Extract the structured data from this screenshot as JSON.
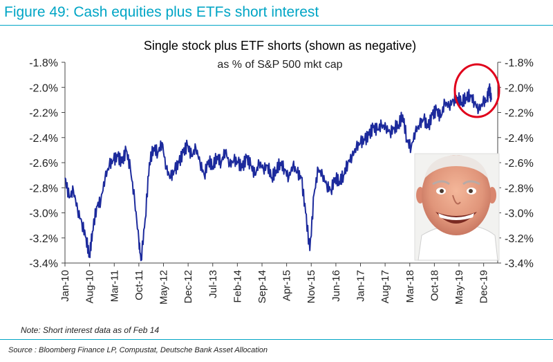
{
  "figure_title": "Figure 49: Cash equities plus ETFs short interest",
  "note": "Note: Short interest data as of Feb 14",
  "source": "Source : Bloomberg Finance LP, Compustat, Deutsche Bank Asset Allocation",
  "colors": {
    "accent": "#00a5c5",
    "line": "#1c2a9c",
    "circle": "#e0001b"
  },
  "chart_data": {
    "type": "line",
    "title": "Single stock plus ETF shorts (shown as negative)",
    "subtitle": "as % of S&P 500 mkt cap",
    "xlabel": "",
    "ylabel": "",
    "ylim": [
      -3.4,
      -1.8
    ],
    "yticks": [
      "-1.8%",
      "-2.0%",
      "-2.2%",
      "-2.4%",
      "-2.6%",
      "-2.8%",
      "-3.0%",
      "-3.2%",
      "-3.4%"
    ],
    "ytick_values": [
      -1.8,
      -2.0,
      -2.2,
      -2.4,
      -2.6,
      -2.8,
      -3.0,
      -3.2,
      -3.4
    ],
    "xticks": [
      "Jan-10",
      "Aug-10",
      "Mar-11",
      "Oct-11",
      "May-12",
      "Dec-12",
      "Jul-13",
      "Feb-14",
      "Sep-14",
      "Apr-15",
      "Nov-15",
      "Jun-16",
      "Jan-17",
      "Aug-17",
      "Mar-18",
      "Oct-18",
      "May-19",
      "Dec-19"
    ],
    "xtick_values": [
      2010.0,
      2010.583,
      2011.167,
      2011.75,
      2012.333,
      2012.917,
      2013.5,
      2014.083,
      2014.667,
      2015.25,
      2015.833,
      2016.417,
      2017.0,
      2017.583,
      2018.167,
      2018.75,
      2019.333,
      2019.917
    ],
    "xlim": [
      2010.0,
      2020.25
    ],
    "right_axis": "mirror",
    "grid": false,
    "annotations": [
      "red circle around latest values",
      "meme photo overlay"
    ],
    "series": [
      {
        "x": [
          2010.0,
          2010.1,
          2010.2,
          2010.3,
          2010.4,
          2010.5,
          2010.58,
          2010.65,
          2010.75,
          2010.85,
          2010.95,
          2011.05,
          2011.15,
          2011.25,
          2011.35,
          2011.45,
          2011.55,
          2011.65,
          2011.75,
          2011.8,
          2011.9,
          2012.0,
          2012.1,
          2012.2,
          2012.3,
          2012.4,
          2012.5,
          2012.6,
          2012.7,
          2012.8,
          2012.9,
          2013.0,
          2013.1,
          2013.2,
          2013.3,
          2013.4,
          2013.5,
          2013.6,
          2013.7,
          2013.8,
          2013.9,
          2014.0,
          2014.1,
          2014.2,
          2014.3,
          2014.4,
          2014.5,
          2014.6,
          2014.7,
          2014.8,
          2014.9,
          2015.0,
          2015.1,
          2015.2,
          2015.3,
          2015.4,
          2015.5,
          2015.6,
          2015.7,
          2015.8,
          2015.9,
          2016.0,
          2016.1,
          2016.2,
          2016.3,
          2016.4,
          2016.5,
          2016.6,
          2016.7,
          2016.8,
          2016.9,
          2017.0,
          2017.1,
          2017.2,
          2017.3,
          2017.4,
          2017.5,
          2017.6,
          2017.7,
          2017.8,
          2017.9,
          2018.0,
          2018.1,
          2018.2,
          2018.3,
          2018.4,
          2018.5,
          2018.6,
          2018.7,
          2018.8,
          2018.9,
          2019.0,
          2019.1,
          2019.2,
          2019.3,
          2019.4,
          2019.5,
          2019.6,
          2019.7,
          2019.8,
          2019.9,
          2020.0,
          2020.05,
          2020.1
        ],
        "values": [
          -2.72,
          -2.88,
          -2.82,
          -2.98,
          -3.08,
          -3.2,
          -3.35,
          -3.15,
          -2.95,
          -2.9,
          -2.72,
          -2.62,
          -2.58,
          -2.55,
          -2.6,
          -2.5,
          -2.65,
          -2.9,
          -3.22,
          -3.38,
          -3.05,
          -2.6,
          -2.48,
          -2.52,
          -2.44,
          -2.65,
          -2.72,
          -2.66,
          -2.6,
          -2.52,
          -2.46,
          -2.55,
          -2.48,
          -2.6,
          -2.7,
          -2.58,
          -2.63,
          -2.55,
          -2.6,
          -2.5,
          -2.62,
          -2.58,
          -2.6,
          -2.64,
          -2.56,
          -2.62,
          -2.7,
          -2.6,
          -2.65,
          -2.62,
          -2.72,
          -2.66,
          -2.6,
          -2.65,
          -2.72,
          -2.62,
          -2.68,
          -2.72,
          -3.0,
          -3.3,
          -2.85,
          -2.65,
          -2.7,
          -2.78,
          -2.82,
          -2.72,
          -2.75,
          -2.7,
          -2.6,
          -2.55,
          -2.48,
          -2.44,
          -2.42,
          -2.38,
          -2.32,
          -2.34,
          -2.3,
          -2.32,
          -2.36,
          -2.32,
          -2.3,
          -2.22,
          -2.42,
          -2.48,
          -2.35,
          -2.3,
          -2.25,
          -2.32,
          -2.22,
          -2.18,
          -2.24,
          -2.12,
          -2.15,
          -2.1,
          -2.08,
          -2.12,
          -2.08,
          -2.06,
          -2.12,
          -2.18,
          -2.12,
          -2.1,
          -2.0,
          -2.1
        ]
      }
    ]
  }
}
